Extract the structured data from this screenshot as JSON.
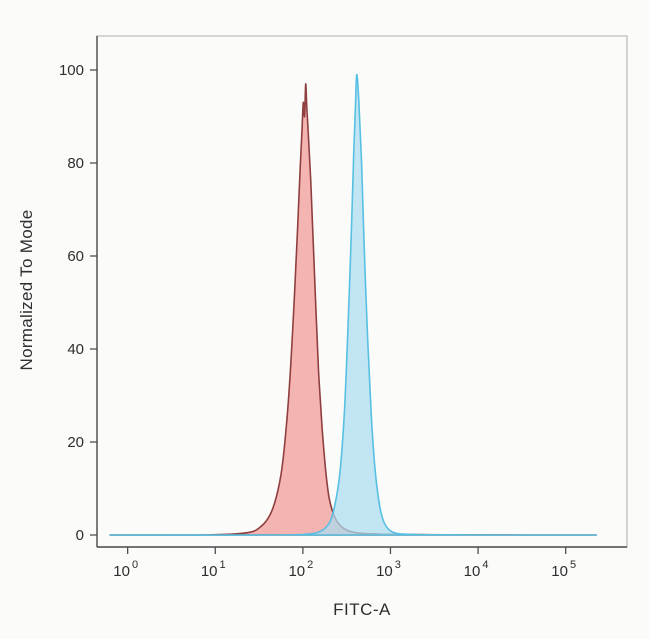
{
  "figure": {
    "background": "#fbfbfa"
  },
  "chart_data": {
    "type": "area",
    "chart_kind": "flow-cytometry-histogram-overlay",
    "title": "",
    "xlabel": "FITC-A",
    "ylabel": "Normalized To Mode",
    "x_scale": "log10",
    "x_tick_base": "10",
    "x_tick_exponents": [
      0,
      1,
      2,
      3,
      4,
      5
    ],
    "xlim_log10": [
      -0.35,
      5.7
    ],
    "y_ticks": [
      0,
      20,
      40,
      60,
      80,
      100
    ],
    "ylim": [
      0,
      107
    ],
    "grid": false,
    "legend": "none",
    "frame_color": "#b9b9b9",
    "axis_color": "#4d4d4d",
    "text_color": "#2e2e2e",
    "series": [
      {
        "name": "red-population",
        "peak_x_value": 105,
        "peak_y_value": 97,
        "fill": "#f2a29e",
        "fill_opacity": 0.78,
        "stroke": "#8f3f3e",
        "stroke_width": 1.6,
        "points_log10x_y": [
          [
            -0.2,
            0
          ],
          [
            0.8,
            0
          ],
          [
            1.2,
            0.2
          ],
          [
            1.4,
            0.6
          ],
          [
            1.5,
            1.5
          ],
          [
            1.6,
            3.5
          ],
          [
            1.68,
            7
          ],
          [
            1.75,
            13
          ],
          [
            1.8,
            21
          ],
          [
            1.85,
            33
          ],
          [
            1.9,
            50
          ],
          [
            1.94,
            66
          ],
          [
            1.97,
            79
          ],
          [
            1.99,
            87
          ],
          [
            2.005,
            93
          ],
          [
            2.02,
            90
          ],
          [
            2.032,
            97
          ],
          [
            2.045,
            92
          ],
          [
            2.06,
            87
          ],
          [
            2.09,
            76
          ],
          [
            2.12,
            62
          ],
          [
            2.15,
            48
          ],
          [
            2.18,
            35
          ],
          [
            2.22,
            23
          ],
          [
            2.26,
            14
          ],
          [
            2.3,
            8
          ],
          [
            2.36,
            4
          ],
          [
            2.44,
            1.8
          ],
          [
            2.55,
            0.7
          ],
          [
            2.7,
            0.3
          ],
          [
            3.0,
            0.15
          ],
          [
            3.6,
            0.05
          ],
          [
            4.5,
            0
          ],
          [
            5.35,
            0
          ]
        ]
      },
      {
        "name": "blue-population",
        "peak_x_value": 410,
        "peak_y_value": 99,
        "fill": "#abdcf0",
        "fill_opacity": 0.72,
        "stroke": "#57c0e2",
        "stroke_width": 1.6,
        "points_log10x_y": [
          [
            -0.2,
            0
          ],
          [
            1.7,
            0
          ],
          [
            2.05,
            0.2
          ],
          [
            2.2,
            0.8
          ],
          [
            2.3,
            2.5
          ],
          [
            2.36,
            6
          ],
          [
            2.42,
            13
          ],
          [
            2.47,
            25
          ],
          [
            2.51,
            42
          ],
          [
            2.55,
            63
          ],
          [
            2.58,
            82
          ],
          [
            2.6,
            92
          ],
          [
            2.615,
            99
          ],
          [
            2.64,
            93
          ],
          [
            2.67,
            80
          ],
          [
            2.7,
            62
          ],
          [
            2.74,
            42
          ],
          [
            2.78,
            26
          ],
          [
            2.82,
            15
          ],
          [
            2.87,
            7
          ],
          [
            2.92,
            3
          ],
          [
            2.98,
            1.2
          ],
          [
            3.06,
            0.4
          ],
          [
            3.2,
            0.15
          ],
          [
            3.5,
            0.05
          ],
          [
            4.3,
            0
          ],
          [
            5.35,
            0
          ]
        ]
      }
    ]
  }
}
